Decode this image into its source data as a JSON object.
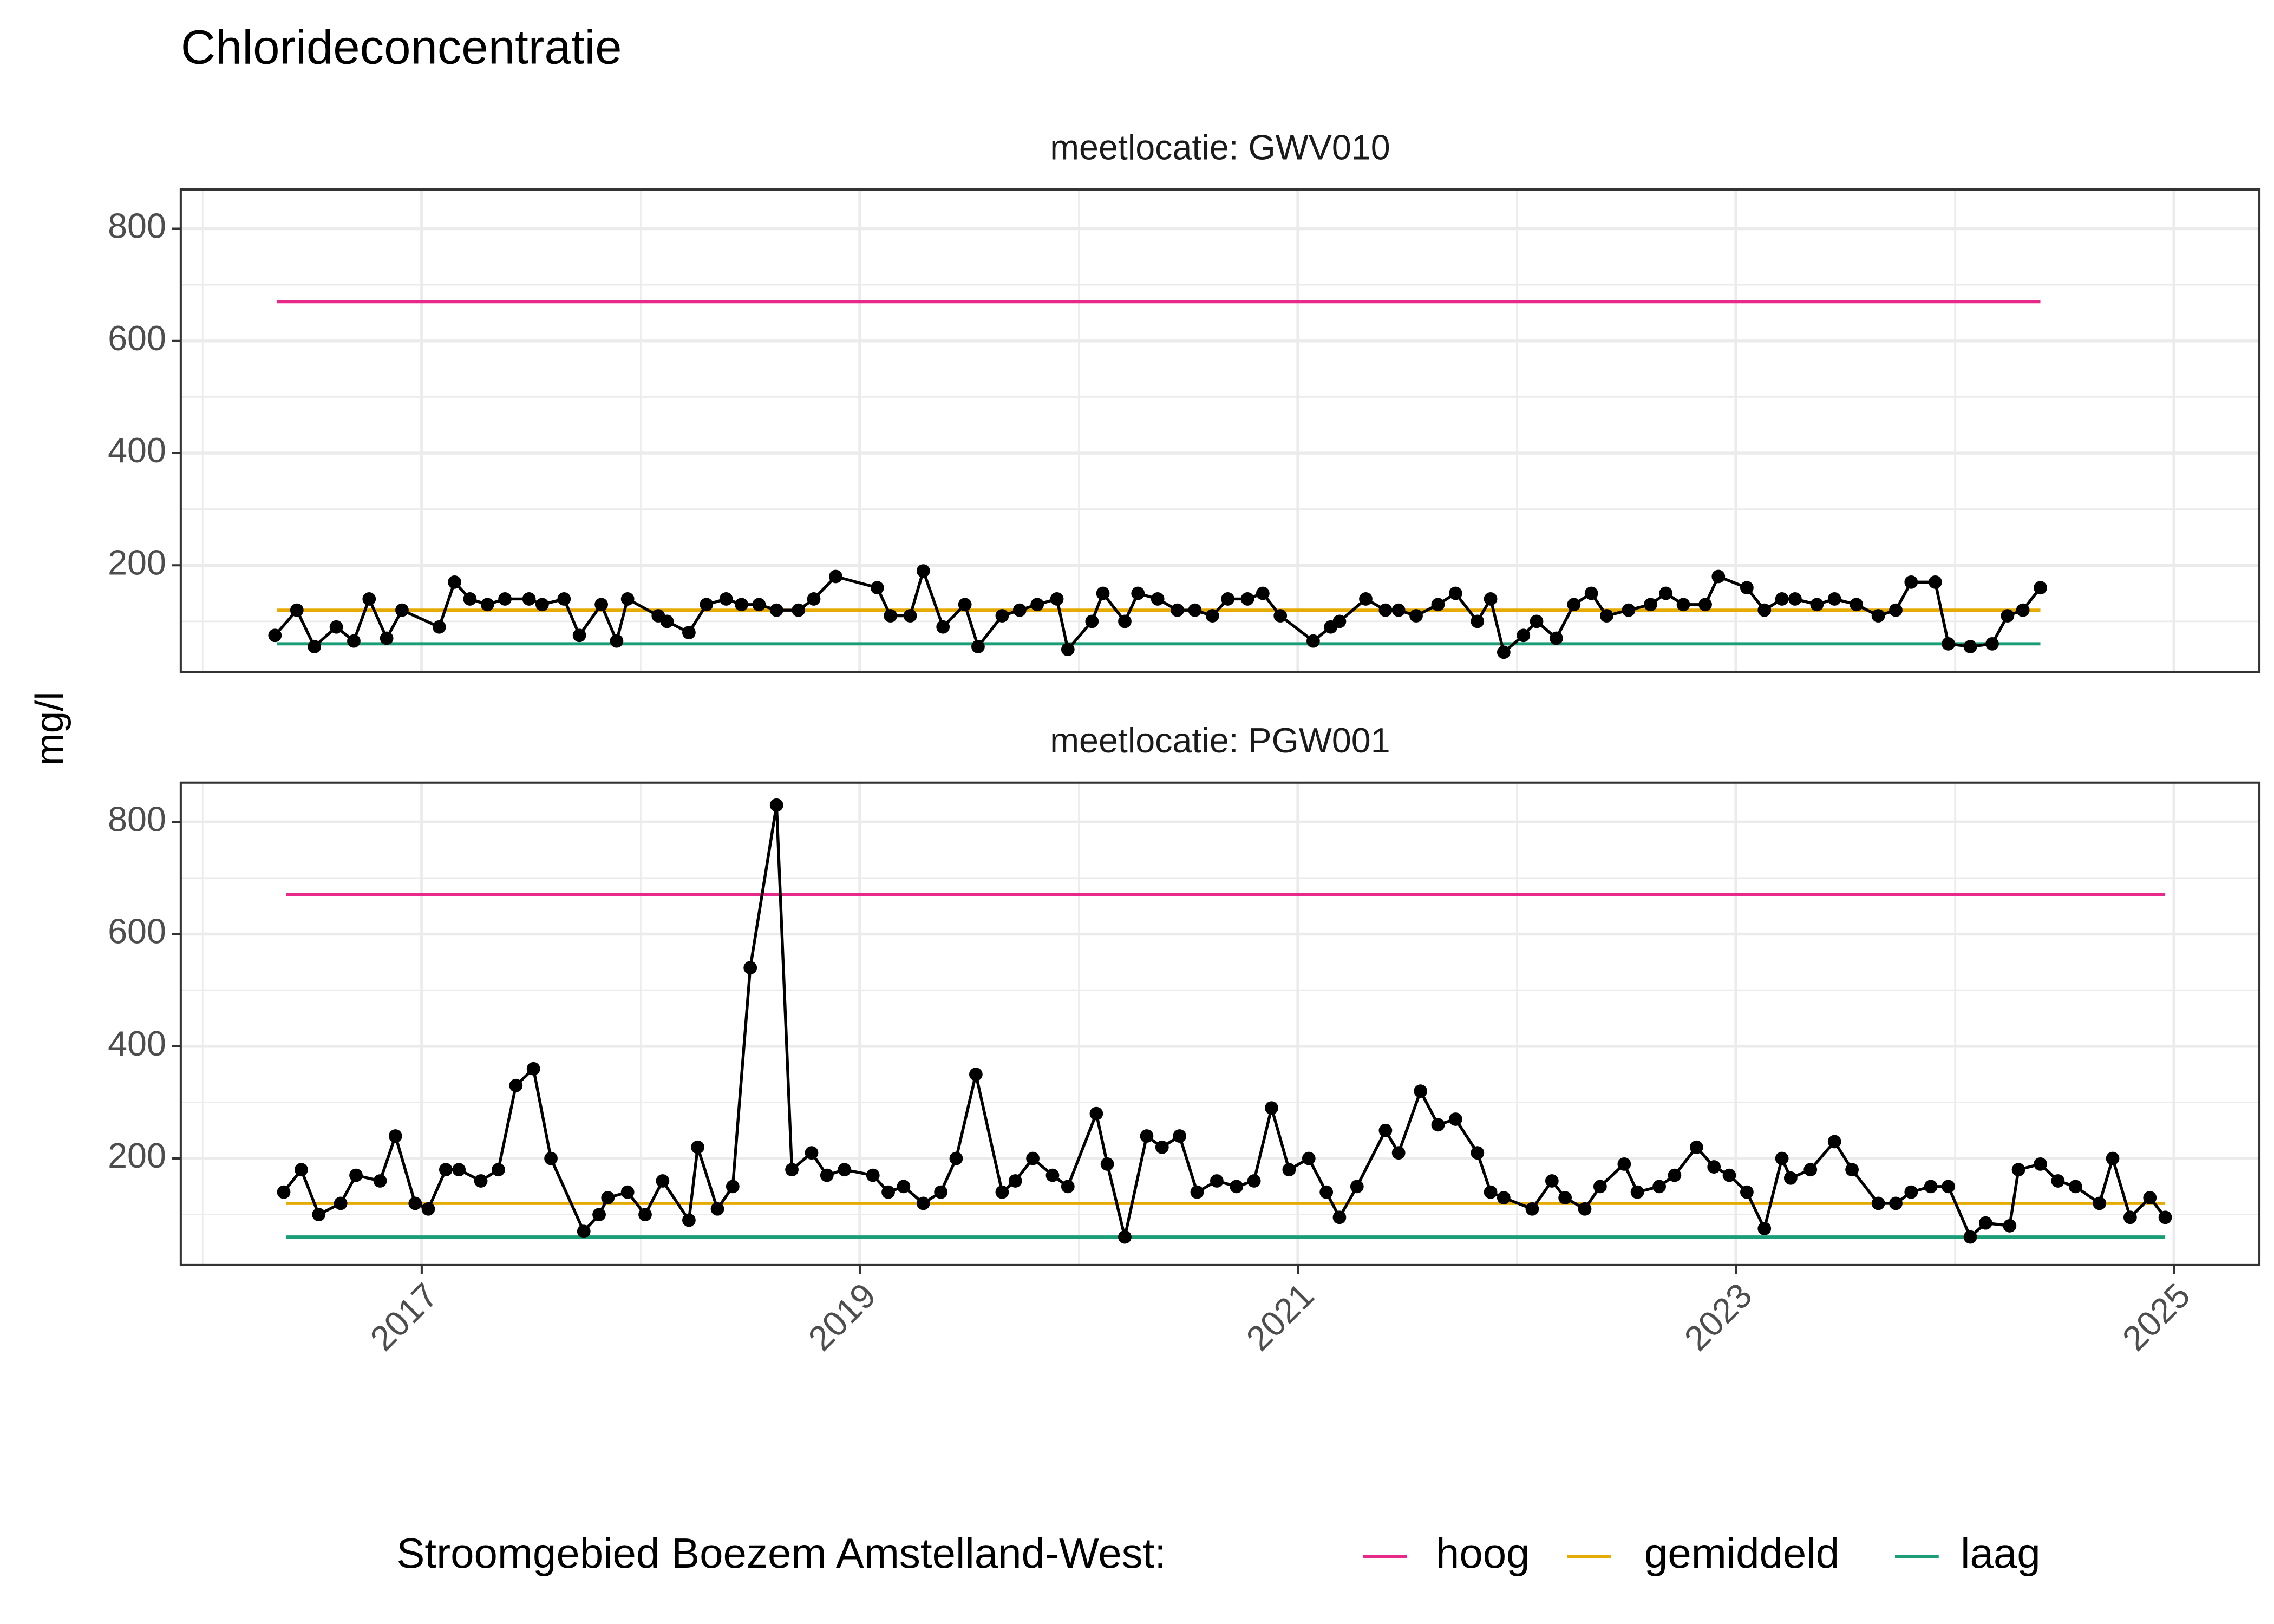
{
  "title": "Chlorideconcentratie",
  "ylabel": "mg/l",
  "legend": {
    "title": "Stroomgebied Boezem Amstelland-West:",
    "position": "bottom"
  },
  "chart_data": [
    {
      "type": "line",
      "subtitle": "meetlocatie: GWV010",
      "xlim": [
        2015.9,
        2025.39
      ],
      "ylim": [
        10,
        870
      ],
      "xticks": [
        2017,
        2019,
        2021,
        2023,
        2025
      ],
      "yticks": [
        200,
        400,
        600,
        800
      ],
      "grid": true,
      "series": [
        {
          "color": "#000000",
          "markers": true,
          "x": [
            2016.33,
            2016.43,
            2016.51,
            2016.61,
            2016.69,
            2016.76,
            2016.84,
            2016.91,
            2017.08,
            2017.15,
            2017.22,
            2017.3,
            2017.38,
            2017.49,
            2017.55,
            2017.65,
            2017.72,
            2017.82,
            2017.89,
            2017.94,
            2018.08,
            2018.12,
            2018.22,
            2018.3,
            2018.39,
            2018.46,
            2018.54,
            2018.62,
            2018.72,
            2018.79,
            2018.89,
            2019.08,
            2019.14,
            2019.23,
            2019.29,
            2019.38,
            2019.48,
            2019.54,
            2019.65,
            2019.73,
            2019.81,
            2019.9,
            2019.95,
            2020.06,
            2020.11,
            2020.21,
            2020.27,
            2020.36,
            2020.45,
            2020.53,
            2020.61,
            2020.68,
            2020.77,
            2020.84,
            2020.92,
            2021.07,
            2021.15,
            2021.19,
            2021.31,
            2021.4,
            2021.46,
            2021.54,
            2021.64,
            2021.72,
            2021.82,
            2021.88,
            2021.94,
            2022.03,
            2022.09,
            2022.18,
            2022.26,
            2022.34,
            2022.41,
            2022.51,
            2022.61,
            2022.68,
            2022.76,
            2022.86,
            2022.92,
            2023.05,
            2023.13,
            2023.21,
            2023.27,
            2023.37,
            2023.45,
            2023.55,
            2023.65,
            2023.73,
            2023.8,
            2023.91,
            2023.97,
            2024.07,
            2024.17,
            2024.24,
            2024.31,
            2024.39
          ],
          "values": [
            75,
            120,
            55,
            90,
            65,
            140,
            70,
            120,
            90,
            170,
            140,
            130,
            140,
            140,
            130,
            140,
            75,
            130,
            65,
            140,
            110,
            100,
            80,
            130,
            140,
            130,
            130,
            120,
            120,
            140,
            180,
            160,
            110,
            110,
            190,
            90,
            130,
            55,
            110,
            120,
            130,
            140,
            50,
            100,
            150,
            100,
            150,
            140,
            120,
            120,
            110,
            140,
            140,
            150,
            110,
            65,
            90,
            100,
            140,
            120,
            120,
            110,
            130,
            150,
            100,
            140,
            45,
            75,
            100,
            70,
            130,
            150,
            110,
            120,
            130,
            150,
            130,
            130,
            180,
            160,
            120,
            140,
            140,
            130,
            140,
            130,
            110,
            120,
            170,
            170,
            60,
            55,
            60,
            110,
            120,
            160
          ]
        },
        {
          "name": "hoog",
          "color": "#e7298a",
          "x": [
            2016.34,
            2024.39
          ],
          "values": [
            670,
            670
          ]
        },
        {
          "name": "gemiddeld",
          "color": "#e6ab02",
          "x": [
            2016.34,
            2024.39
          ],
          "values": [
            120,
            120
          ]
        },
        {
          "name": "laag",
          "color": "#1b9e77",
          "x": [
            2016.34,
            2024.39
          ],
          "values": [
            60,
            60
          ]
        }
      ]
    },
    {
      "type": "line",
      "subtitle": "meetlocatie: PGW001",
      "xlim": [
        2015.9,
        2025.39
      ],
      "ylim": [
        10,
        870
      ],
      "xticks": [
        2017,
        2019,
        2021,
        2023,
        2025
      ],
      "yticks": [
        200,
        400,
        600,
        800
      ],
      "grid": true,
      "series": [
        {
          "color": "#000000",
          "markers": true,
          "x": [
            2016.37,
            2016.45,
            2016.53,
            2016.63,
            2016.7,
            2016.81,
            2016.88,
            2016.97,
            2017.03,
            2017.11,
            2017.17,
            2017.27,
            2017.35,
            2017.43,
            2017.51,
            2017.59,
            2017.74,
            2017.81,
            2017.85,
            2017.94,
            2018.02,
            2018.1,
            2018.22,
            2018.26,
            2018.35,
            2018.42,
            2018.5,
            2018.62,
            2018.69,
            2018.78,
            2018.85,
            2018.93,
            2019.06,
            2019.13,
            2019.2,
            2019.29,
            2019.37,
            2019.44,
            2019.53,
            2019.65,
            2019.71,
            2019.79,
            2019.88,
            2019.95,
            2020.08,
            2020.13,
            2020.21,
            2020.31,
            2020.38,
            2020.46,
            2020.54,
            2020.63,
            2020.72,
            2020.8,
            2020.88,
            2020.96,
            2021.05,
            2021.13,
            2021.19,
            2021.27,
            2021.4,
            2021.46,
            2021.56,
            2021.64,
            2021.72,
            2021.82,
            2021.88,
            2021.94,
            2022.07,
            2022.16,
            2022.22,
            2022.31,
            2022.38,
            2022.49,
            2022.55,
            2022.65,
            2022.72,
            2022.82,
            2022.9,
            2022.97,
            2023.05,
            2023.13,
            2023.21,
            2023.25,
            2023.34,
            2023.45,
            2023.53,
            2023.65,
            2023.73,
            2023.8,
            2023.89,
            2023.97,
            2024.07,
            2024.14,
            2024.25,
            2024.29,
            2024.39,
            2024.47,
            2024.55,
            2024.66,
            2024.72,
            2024.8,
            2024.89,
            2024.96
          ],
          "values": [
            140,
            180,
            100,
            120,
            170,
            160,
            240,
            120,
            110,
            180,
            180,
            160,
            180,
            330,
            360,
            200,
            70,
            100,
            130,
            140,
            100,
            160,
            90,
            220,
            110,
            150,
            540,
            830,
            180,
            210,
            170,
            180,
            170,
            140,
            150,
            120,
            140,
            200,
            350,
            140,
            160,
            200,
            170,
            150,
            280,
            190,
            60,
            240,
            220,
            240,
            140,
            160,
            150,
            160,
            290,
            180,
            200,
            140,
            95,
            150,
            250,
            210,
            320,
            260,
            270,
            210,
            140,
            130,
            110,
            160,
            130,
            110,
            150,
            190,
            140,
            150,
            170,
            220,
            185,
            170,
            140,
            75,
            200,
            165,
            180,
            230,
            180,
            120,
            120,
            140,
            150,
            150,
            60,
            85,
            80,
            180,
            190,
            160,
            150,
            120,
            200,
            95,
            130,
            95
          ]
        },
        {
          "color": "#e7298a",
          "x": [
            2016.38,
            2024.96
          ],
          "values": [
            670,
            670
          ]
        },
        {
          "color": "#e6ab02",
          "x": [
            2016.38,
            2024.96
          ],
          "values": [
            120,
            120
          ]
        },
        {
          "color": "#1b9e77",
          "x": [
            2016.38,
            2024.96
          ],
          "values": [
            60,
            60
          ]
        }
      ]
    }
  ]
}
